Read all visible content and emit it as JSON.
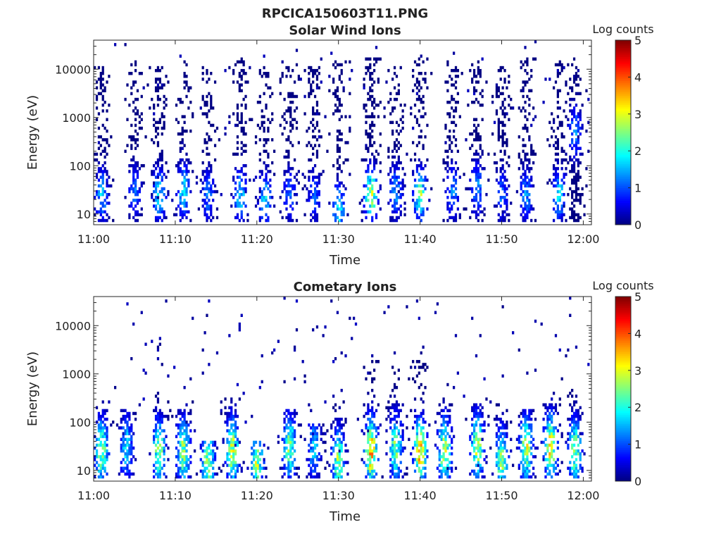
{
  "figure": {
    "title": "RPCICA150603T11.PNG"
  },
  "colormap": {
    "name": "jet",
    "stops": [
      "#00007f",
      "#0000ff",
      "#007fff",
      "#00ffff",
      "#7fff7f",
      "#ffff00",
      "#ff7f00",
      "#ff0000",
      "#7f0000"
    ]
  },
  "chart_data": [
    {
      "type": "heatmap",
      "title": "Solar Wind Ions",
      "xlabel": "Time",
      "ylabel": "Energy (eV)",
      "x_ticks": [
        "11:00",
        "11:10",
        "11:20",
        "11:30",
        "11:40",
        "11:50",
        "12:00"
      ],
      "xlim": [
        "11:00",
        "12:01"
      ],
      "y_scale": "log",
      "y_ticks": [
        "10",
        "100",
        "1000",
        "10000"
      ],
      "ylim": [
        6,
        40000
      ],
      "colorbar": {
        "label": "Log counts",
        "range": [
          0,
          5
        ],
        "ticks": [
          "0",
          "1",
          "2",
          "3",
          "4",
          "5"
        ]
      },
      "description_of_values": "Sparse counts per time/energy bin; periodic bursts roughly every 3 minutes extending from ~8 eV up to ~20000 eV, peak log counts ~3 near 20-40 eV at 11:34 and 11:40",
      "bursts": [
        {
          "time": "11:01",
          "e_min": 8,
          "e_max": 12000,
          "peak_energy": 25,
          "peak_log_counts": 1.8
        },
        {
          "time": "11:05",
          "e_min": 8,
          "e_max": 15000,
          "peak_energy": 30,
          "peak_log_counts": 1.3
        },
        {
          "time": "11:08",
          "e_min": 8,
          "e_max": 12000,
          "peak_energy": 25,
          "peak_log_counts": 2.0
        },
        {
          "time": "11:11",
          "e_min": 8,
          "e_max": 15000,
          "peak_energy": 30,
          "peak_log_counts": 2.2
        },
        {
          "time": "11:14",
          "e_min": 8,
          "e_max": 12000,
          "peak_energy": 25,
          "peak_log_counts": 1.4
        },
        {
          "time": "11:18",
          "e_min": 8,
          "e_max": 18000,
          "peak_energy": 25,
          "peak_log_counts": 2.0
        },
        {
          "time": "11:21",
          "e_min": 8,
          "e_max": 12000,
          "peak_energy": 20,
          "peak_log_counts": 2.0
        },
        {
          "time": "11:24",
          "e_min": 8,
          "e_max": 15000,
          "peak_energy": 25,
          "peak_log_counts": 1.3
        },
        {
          "time": "11:27",
          "e_min": 8,
          "e_max": 12000,
          "peak_energy": 25,
          "peak_log_counts": 1.2
        },
        {
          "time": "11:30",
          "e_min": 8,
          "e_max": 15000,
          "peak_energy": 12,
          "peak_log_counts": 2.2
        },
        {
          "time": "11:34",
          "e_min": 8,
          "e_max": 18000,
          "peak_energy": 25,
          "peak_log_counts": 3.0
        },
        {
          "time": "11:37",
          "e_min": 8,
          "e_max": 12000,
          "peak_energy": 30,
          "peak_log_counts": 1.6
        },
        {
          "time": "11:40",
          "e_min": 8,
          "e_max": 18000,
          "peak_energy": 25,
          "peak_log_counts": 2.8
        },
        {
          "time": "11:44",
          "e_min": 8,
          "e_max": 15000,
          "peak_energy": 30,
          "peak_log_counts": 1.5
        },
        {
          "time": "11:47",
          "e_min": 8,
          "e_max": 15000,
          "peak_energy": 35,
          "peak_log_counts": 1.6
        },
        {
          "time": "11:50",
          "e_min": 8,
          "e_max": 12000,
          "peak_energy": 25,
          "peak_log_counts": 1.3
        },
        {
          "time": "11:53",
          "e_min": 8,
          "e_max": 18000,
          "peak_energy": 25,
          "peak_log_counts": 1.5
        },
        {
          "time": "11:57",
          "e_min": 8,
          "e_max": 15000,
          "peak_energy": 25,
          "peak_log_counts": 2.0
        },
        {
          "time": "11:59",
          "e_min": 8,
          "e_max": 20000,
          "peak_energy": 500,
          "peak_log_counts": 1.5
        }
      ]
    },
    {
      "type": "heatmap",
      "title": "Cometary Ions",
      "xlabel": "Time",
      "ylabel": "Energy (eV)",
      "x_ticks": [
        "11:00",
        "11:10",
        "11:20",
        "11:30",
        "11:40",
        "11:50",
        "12:00"
      ],
      "xlim": [
        "11:00",
        "12:01"
      ],
      "y_scale": "log",
      "y_ticks": [
        "10",
        "100",
        "1000",
        "10000"
      ],
      "ylim": [
        6,
        40000
      ],
      "colorbar": {
        "label": "Log counts",
        "range": [
          0,
          5
        ],
        "ticks": [
          "0",
          "1",
          "2",
          "3",
          "4",
          "5"
        ]
      },
      "description_of_values": "Dense counts concentrated at 8-300 eV with periodic bursts; strongest (log counts ~4) near 20-30 eV at 11:34 and 11:40; sparse points up to ~30000 eV",
      "bursts": [
        {
          "time": "11:01",
          "e_min": 8,
          "e_max": 300,
          "peak_energy": 25,
          "peak_log_counts": 3.0
        },
        {
          "time": "11:04",
          "e_min": 8,
          "e_max": 200,
          "peak_energy": 30,
          "peak_log_counts": 2.0
        },
        {
          "time": "11:08",
          "e_min": 8,
          "e_max": 400,
          "peak_energy": 25,
          "peak_log_counts": 3.0
        },
        {
          "time": "11:11",
          "e_min": 8,
          "e_max": 300,
          "peak_energy": 25,
          "peak_log_counts": 3.0
        },
        {
          "time": "11:14",
          "e_min": 8,
          "e_max": 40,
          "peak_energy": 15,
          "peak_log_counts": 3.0
        },
        {
          "time": "11:17",
          "e_min": 8,
          "e_max": 400,
          "peak_energy": 25,
          "peak_log_counts": 3.3
        },
        {
          "time": "11:20",
          "e_min": 8,
          "e_max": 40,
          "peak_energy": 15,
          "peak_log_counts": 3.0
        },
        {
          "time": "11:24",
          "e_min": 8,
          "e_max": 200,
          "peak_energy": 30,
          "peak_log_counts": 2.8
        },
        {
          "time": "11:27",
          "e_min": 8,
          "e_max": 100,
          "peak_energy": 30,
          "peak_log_counts": 1.8
        },
        {
          "time": "11:30",
          "e_min": 8,
          "e_max": 300,
          "peak_energy": 15,
          "peak_log_counts": 3.0
        },
        {
          "time": "11:34",
          "e_min": 8,
          "e_max": 2000,
          "peak_energy": 25,
          "peak_log_counts": 4.0
        },
        {
          "time": "11:37",
          "e_min": 8,
          "e_max": 1500,
          "peak_energy": 30,
          "peak_log_counts": 2.8
        },
        {
          "time": "11:40",
          "e_min": 8,
          "e_max": 2000,
          "peak_energy": 25,
          "peak_log_counts": 3.8
        },
        {
          "time": "11:43",
          "e_min": 8,
          "e_max": 400,
          "peak_energy": 25,
          "peak_log_counts": 3.3
        },
        {
          "time": "11:47",
          "e_min": 8,
          "e_max": 300,
          "peak_energy": 30,
          "peak_log_counts": 3.3
        },
        {
          "time": "11:50",
          "e_min": 8,
          "e_max": 300,
          "peak_energy": 15,
          "peak_log_counts": 3.0
        },
        {
          "time": "11:53",
          "e_min": 8,
          "e_max": 200,
          "peak_energy": 30,
          "peak_log_counts": 3.2
        },
        {
          "time": "11:56",
          "e_min": 8,
          "e_max": 400,
          "peak_energy": 30,
          "peak_log_counts": 3.6
        },
        {
          "time": "11:59",
          "e_min": 8,
          "e_max": 600,
          "peak_energy": 25,
          "peak_log_counts": 3.0
        }
      ]
    }
  ]
}
